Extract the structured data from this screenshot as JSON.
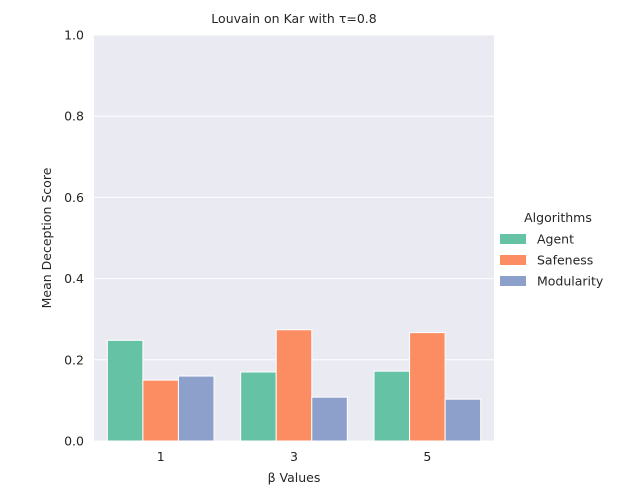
{
  "chart_data": {
    "type": "bar",
    "title": "Louvain on Kar with τ=0.8",
    "xlabel": "β Values",
    "ylabel": "Mean Deception Score",
    "categories": [
      "1",
      "3",
      "5"
    ],
    "ylim": [
      0,
      1.0
    ],
    "yticks": [
      "0.0",
      "0.2",
      "0.4",
      "0.6",
      "0.8",
      "1.0"
    ],
    "grid": true,
    "legend": {
      "title": "Algorithms",
      "placement": "right"
    },
    "series": [
      {
        "name": "Agent",
        "color": "#66c2a5",
        "values": [
          0.248,
          0.17,
          0.172
        ]
      },
      {
        "name": "Safeness",
        "color": "#fc8d62",
        "values": [
          0.15,
          0.274,
          0.267
        ]
      },
      {
        "name": "Modularity",
        "color": "#8da0cb",
        "values": [
          0.16,
          0.108,
          0.103
        ]
      }
    ],
    "style": {
      "background": "#eaeaf2",
      "grid_color": "#ffffff",
      "bar_edge": "#ffffff"
    }
  }
}
